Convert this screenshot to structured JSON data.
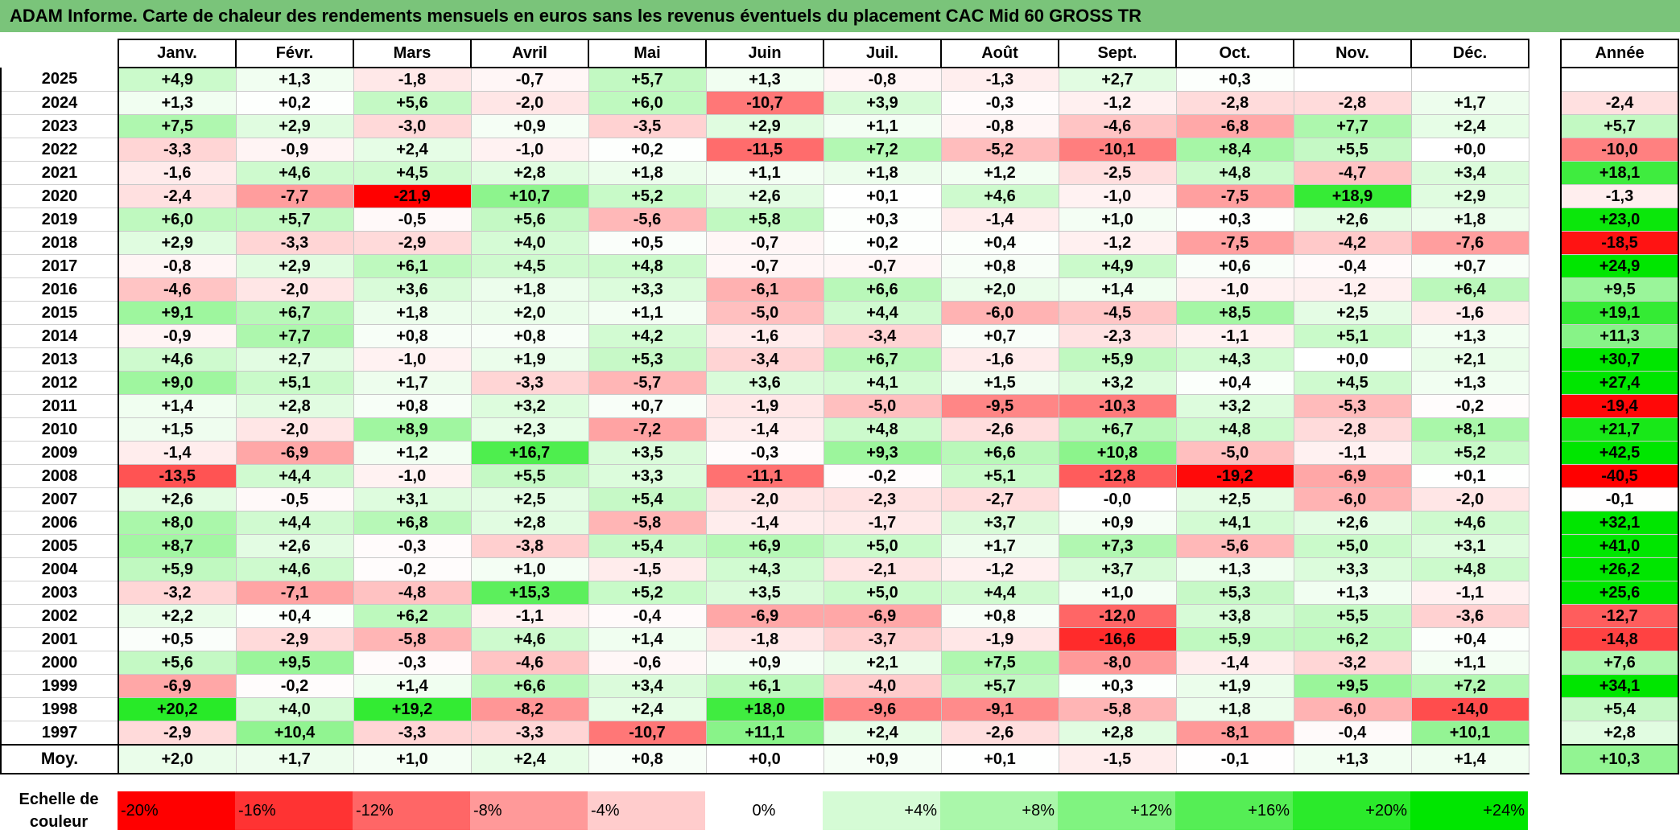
{
  "title": "ADAM Informe. Carte de chaleur des rendements mensuels en euros sans les revenus éventuels du placement CAC Mid 60 GROSS TR",
  "colors": {
    "title_bg": "#7ac47a",
    "negative": "#ff0000",
    "positive": "#00e000",
    "neutral": "#ffffff"
  },
  "chart_data": {
    "type": "heatmap",
    "columns": [
      "Janv.",
      "Févr.",
      "Mars",
      "Avril",
      "Mai",
      "Juin",
      "Juil.",
      "Août",
      "Sept.",
      "Oct.",
      "Nov.",
      "Déc."
    ],
    "annual_header": "Année",
    "rows": [
      {
        "year": "2025",
        "values": [
          "+4,9",
          "+1,3",
          "-1,8",
          "-0,7",
          "+5,7",
          "+1,3",
          "-0,8",
          "-1,3",
          "+2,7",
          "+0,3",
          "",
          ""
        ],
        "annual": ""
      },
      {
        "year": "2024",
        "values": [
          "+1,3",
          "+0,2",
          "+5,6",
          "-2,0",
          "+6,0",
          "-10,7",
          "+3,9",
          "-0,3",
          "-1,2",
          "-2,8",
          "-2,8",
          "+1,7"
        ],
        "annual": "-2,4"
      },
      {
        "year": "2023",
        "values": [
          "+7,5",
          "+2,9",
          "-3,0",
          "+0,9",
          "-3,5",
          "+2,9",
          "+1,1",
          "-0,8",
          "-4,6",
          "-6,8",
          "+7,7",
          "+2,4"
        ],
        "annual": "+5,7"
      },
      {
        "year": "2022",
        "values": [
          "-3,3",
          "-0,9",
          "+2,4",
          "-1,0",
          "+0,2",
          "-11,5",
          "+7,2",
          "-5,2",
          "-10,1",
          "+8,4",
          "+5,5",
          "+0,0"
        ],
        "annual": "-10,0"
      },
      {
        "year": "2021",
        "values": [
          "-1,6",
          "+4,6",
          "+4,5",
          "+2,8",
          "+1,8",
          "+1,1",
          "+1,8",
          "+1,2",
          "-2,5",
          "+4,8",
          "-4,7",
          "+3,4"
        ],
        "annual": "+18,1"
      },
      {
        "year": "2020",
        "values": [
          "-2,4",
          "-7,7",
          "-21,9",
          "+10,7",
          "+5,2",
          "+2,6",
          "+0,1",
          "+4,6",
          "-1,0",
          "-7,5",
          "+18,9",
          "+2,9"
        ],
        "annual": "-1,3"
      },
      {
        "year": "2019",
        "values": [
          "+6,0",
          "+5,7",
          "-0,5",
          "+5,6",
          "-5,6",
          "+5,8",
          "+0,3",
          "-1,4",
          "+1,0",
          "+0,3",
          "+2,6",
          "+1,8"
        ],
        "annual": "+23,0"
      },
      {
        "year": "2018",
        "values": [
          "+2,9",
          "-3,3",
          "-2,9",
          "+4,0",
          "+0,5",
          "-0,7",
          "+0,2",
          "+0,4",
          "-1,2",
          "-7,5",
          "-4,2",
          "-7,6"
        ],
        "annual": "-18,5"
      },
      {
        "year": "2017",
        "values": [
          "-0,8",
          "+2,9",
          "+6,1",
          "+4,5",
          "+4,8",
          "-0,7",
          "-0,7",
          "+0,8",
          "+4,9",
          "+0,6",
          "-0,4",
          "+0,7"
        ],
        "annual": "+24,9"
      },
      {
        "year": "2016",
        "values": [
          "-4,6",
          "-2,0",
          "+3,6",
          "+1,8",
          "+3,3",
          "-6,1",
          "+6,6",
          "+2,0",
          "+1,4",
          "-1,0",
          "-1,2",
          "+6,4"
        ],
        "annual": "+9,5"
      },
      {
        "year": "2015",
        "values": [
          "+9,1",
          "+6,7",
          "+1,8",
          "+2,0",
          "+1,1",
          "-5,0",
          "+4,4",
          "-6,0",
          "-4,5",
          "+8,5",
          "+2,5",
          "-1,6"
        ],
        "annual": "+19,1"
      },
      {
        "year": "2014",
        "values": [
          "-0,9",
          "+7,7",
          "+0,8",
          "+0,8",
          "+4,2",
          "-1,6",
          "-3,4",
          "+0,7",
          "-2,3",
          "-1,1",
          "+5,1",
          "+1,3"
        ],
        "annual": "+11,3"
      },
      {
        "year": "2013",
        "values": [
          "+4,6",
          "+2,7",
          "-1,0",
          "+1,9",
          "+5,3",
          "-3,4",
          "+6,7",
          "-1,6",
          "+5,9",
          "+4,3",
          "+0,0",
          "+2,1"
        ],
        "annual": "+30,7"
      },
      {
        "year": "2012",
        "values": [
          "+9,0",
          "+5,1",
          "+1,7",
          "-3,3",
          "-5,7",
          "+3,6",
          "+4,1",
          "+1,5",
          "+3,2",
          "+0,4",
          "+4,5",
          "+1,3"
        ],
        "annual": "+27,4"
      },
      {
        "year": "2011",
        "values": [
          "+1,4",
          "+2,8",
          "+0,8",
          "+3,2",
          "+0,7",
          "-1,9",
          "-5,0",
          "-9,5",
          "-10,3",
          "+3,2",
          "-5,3",
          "-0,2"
        ],
        "annual": "-19,4"
      },
      {
        "year": "2010",
        "values": [
          "+1,5",
          "-2,0",
          "+8,9",
          "+2,3",
          "-7,2",
          "-1,4",
          "+4,8",
          "-2,6",
          "+6,7",
          "+4,8",
          "-2,8",
          "+8,1"
        ],
        "annual": "+21,7"
      },
      {
        "year": "2009",
        "values": [
          "-1,4",
          "-6,9",
          "+1,2",
          "+16,7",
          "+3,5",
          "-0,3",
          "+9,3",
          "+6,6",
          "+10,8",
          "-5,0",
          "-1,1",
          "+5,2"
        ],
        "annual": "+42,5"
      },
      {
        "year": "2008",
        "values": [
          "-13,5",
          "+4,4",
          "-1,0",
          "+5,5",
          "+3,3",
          "-11,1",
          "-0,2",
          "+5,1",
          "-12,8",
          "-19,2",
          "-6,9",
          "+0,1"
        ],
        "annual": "-40,5"
      },
      {
        "year": "2007",
        "values": [
          "+2,6",
          "-0,5",
          "+3,1",
          "+2,5",
          "+5,4",
          "-2,0",
          "-2,3",
          "-2,7",
          "-0,0",
          "+2,5",
          "-6,0",
          "-2,0"
        ],
        "annual": "-0,1"
      },
      {
        "year": "2006",
        "values": [
          "+8,0",
          "+4,4",
          "+6,8",
          "+2,8",
          "-5,8",
          "-1,4",
          "-1,7",
          "+3,7",
          "+0,9",
          "+4,1",
          "+2,6",
          "+4,6"
        ],
        "annual": "+32,1"
      },
      {
        "year": "2005",
        "values": [
          "+8,7",
          "+2,6",
          "-0,3",
          "-3,8",
          "+5,4",
          "+6,9",
          "+5,0",
          "+1,7",
          "+7,3",
          "-5,6",
          "+5,0",
          "+3,1"
        ],
        "annual": "+41,0"
      },
      {
        "year": "2004",
        "values": [
          "+5,9",
          "+4,6",
          "-0,2",
          "+1,0",
          "-1,5",
          "+4,3",
          "-2,1",
          "-1,2",
          "+3,7",
          "+1,3",
          "+3,3",
          "+4,8"
        ],
        "annual": "+26,2"
      },
      {
        "year": "2003",
        "values": [
          "-3,2",
          "-7,1",
          "-4,8",
          "+15,3",
          "+5,2",
          "+3,5",
          "+5,0",
          "+4,4",
          "+1,0",
          "+5,3",
          "+1,3",
          "-1,1"
        ],
        "annual": "+25,6"
      },
      {
        "year": "2002",
        "values": [
          "+2,2",
          "+0,4",
          "+6,2",
          "-1,1",
          "-0,4",
          "-6,9",
          "-6,9",
          "+0,8",
          "-12,0",
          "+3,8",
          "+5,5",
          "-3,6"
        ],
        "annual": "-12,7"
      },
      {
        "year": "2001",
        "values": [
          "+0,5",
          "-2,9",
          "-5,8",
          "+4,6",
          "+1,4",
          "-1,8",
          "-3,7",
          "-1,9",
          "-16,6",
          "+5,9",
          "+6,2",
          "+0,4"
        ],
        "annual": "-14,8"
      },
      {
        "year": "2000",
        "values": [
          "+5,6",
          "+9,5",
          "-0,3",
          "-4,6",
          "-0,6",
          "+0,9",
          "+2,1",
          "+7,5",
          "-8,0",
          "-1,4",
          "-3,2",
          "+1,1"
        ],
        "annual": "+7,6"
      },
      {
        "year": "1999",
        "values": [
          "-6,9",
          "-0,2",
          "+1,4",
          "+6,6",
          "+3,4",
          "+6,1",
          "-4,0",
          "+5,7",
          "+0,3",
          "+1,9",
          "+9,5",
          "+7,2"
        ],
        "annual": "+34,1"
      },
      {
        "year": "1998",
        "values": [
          "+20,2",
          "+4,0",
          "+19,2",
          "-8,2",
          "+2,4",
          "+18,0",
          "-9,6",
          "-9,1",
          "-5,8",
          "+1,8",
          "-6,0",
          "-14,0"
        ],
        "annual": "+5,4"
      },
      {
        "year": "1997",
        "values": [
          "-2,9",
          "+10,4",
          "-3,3",
          "-3,3",
          "-10,7",
          "+11,1",
          "+2,4",
          "-2,6",
          "+2,8",
          "-8,1",
          "-0,4",
          "+10,1"
        ],
        "annual": "+2,8"
      }
    ],
    "average": {
      "label": "Moy.",
      "values": [
        "+2,0",
        "+1,7",
        "+1,0",
        "+2,4",
        "+0,8",
        "+0,0",
        "+0,9",
        "+0,1",
        "-1,5",
        "-0,1",
        "+1,3",
        "+1,4"
      ],
      "annual": "+10,3"
    },
    "scale": {
      "label": "Echelle de couleur",
      "items": [
        "-20%",
        "-16%",
        "-12%",
        "-8%",
        "-4%",
        "0%",
        "+4%",
        "+8%",
        "+12%",
        "+16%",
        "+20%",
        "+24%"
      ],
      "values": [
        -20,
        -16,
        -12,
        -8,
        -4,
        0,
        4,
        8,
        12,
        16,
        20,
        24
      ]
    }
  }
}
